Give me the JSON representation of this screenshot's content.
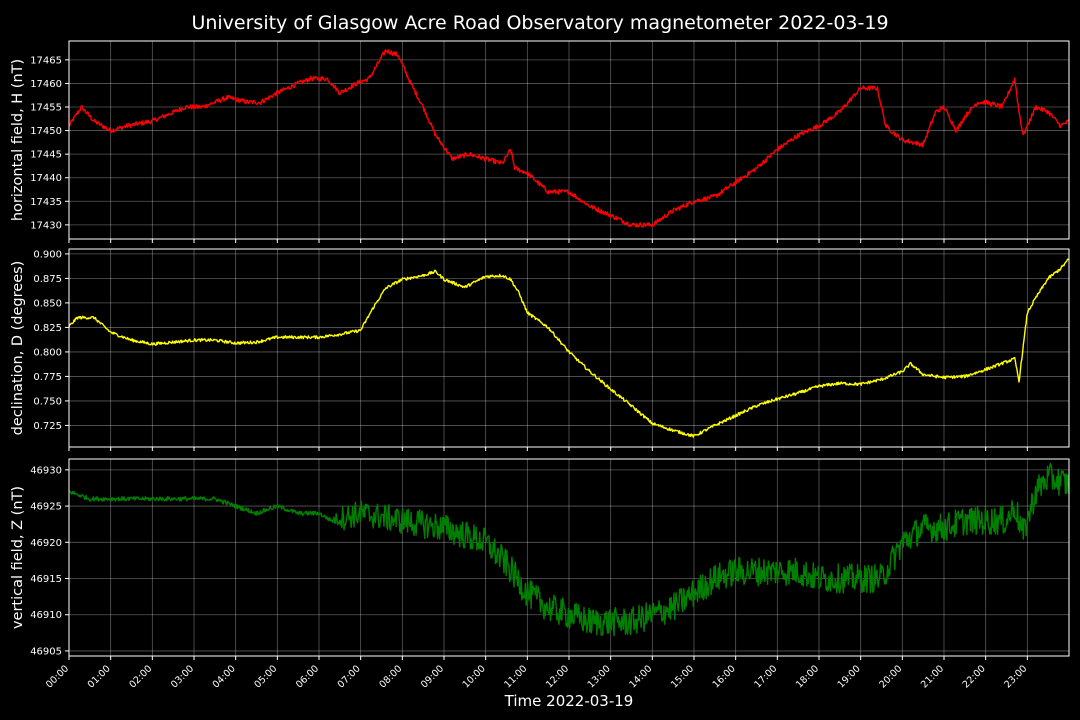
{
  "title": "University of Glasgow Acre Road Observatory magnetometer 2022-03-19",
  "chart_data": [
    {
      "type": "line",
      "ylabel": "horizontal field, H (nT)",
      "ylim": [
        17427,
        17469
      ],
      "yticks": [
        17430,
        17435,
        17440,
        17445,
        17450,
        17455,
        17460,
        17465
      ],
      "color": "#ff0000",
      "noise": 0.5,
      "x_hours": [
        0,
        0.3,
        0.6,
        1.0,
        1.4,
        2.0,
        2.8,
        3.2,
        3.8,
        4.3,
        4.6,
        5.0,
        5.5,
        5.8,
        6.2,
        6.5,
        6.9,
        7.2,
        7.6,
        7.9,
        8.2,
        8.5,
        8.8,
        9.2,
        9.6,
        10.0,
        10.4,
        10.6,
        10.7,
        11.0,
        11.5,
        12.0,
        12.5,
        13.0,
        13.5,
        14.0,
        14.5,
        15.0,
        15.5,
        16.0,
        16.5,
        17.0,
        17.5,
        18.0,
        18.5,
        19.0,
        19.4,
        19.6,
        20.0,
        20.5,
        20.8,
        21.0,
        21.3,
        21.5,
        21.8,
        22.0,
        22.4,
        22.7,
        22.8,
        22.9,
        23.2,
        23.5,
        23.8,
        24.0
      ],
      "values": [
        17451,
        17455,
        17452,
        17450,
        17451,
        17452,
        17455,
        17455,
        17457,
        17456,
        17456,
        17458,
        17460,
        17461,
        17461,
        17458,
        17460,
        17461,
        17467,
        17466,
        17460,
        17455,
        17449,
        17444,
        17445,
        17444,
        17443,
        17446,
        17442,
        17441,
        17437,
        17437,
        17434,
        17432,
        17430,
        17430,
        17433,
        17435,
        17436,
        17439,
        17442,
        17446,
        17449,
        17451,
        17454,
        17459,
        17459,
        17451,
        17448,
        17447,
        17454,
        17455,
        17450,
        17453,
        17456,
        17456,
        17455,
        17461,
        17454,
        17449,
        17455,
        17454,
        17451,
        17452
      ]
    },
    {
      "type": "line",
      "ylabel": "declination, D (degrees)",
      "ylim": [
        0.703,
        0.905
      ],
      "yticks": [
        0.725,
        0.75,
        0.775,
        0.8,
        0.825,
        0.85,
        0.875,
        0.9
      ],
      "tick_decimals": 3,
      "color": "#ffff00",
      "noise": 0.0015,
      "x_hours": [
        0,
        0.2,
        0.6,
        1.0,
        1.5,
        2.0,
        3.0,
        3.5,
        4.0,
        4.5,
        5.0,
        5.5,
        6.0,
        6.5,
        7.0,
        7.3,
        7.6,
        8.0,
        8.5,
        8.8,
        9.0,
        9.5,
        10.0,
        10.4,
        10.6,
        10.8,
        11.0,
        11.5,
        12.0,
        12.5,
        13.0,
        13.5,
        14.0,
        14.5,
        15.0,
        15.5,
        16.0,
        16.5,
        17.0,
        17.5,
        18.0,
        18.5,
        19.0,
        19.5,
        20.0,
        20.2,
        20.5,
        20.8,
        21.0,
        21.5,
        22.0,
        22.5,
        22.7,
        22.8,
        23.0,
        23.2,
        23.5,
        23.8,
        24.0
      ],
      "values": [
        0.826,
        0.835,
        0.835,
        0.82,
        0.812,
        0.808,
        0.812,
        0.812,
        0.809,
        0.81,
        0.815,
        0.815,
        0.815,
        0.818,
        0.822,
        0.845,
        0.865,
        0.874,
        0.878,
        0.882,
        0.874,
        0.866,
        0.877,
        0.878,
        0.874,
        0.86,
        0.84,
        0.825,
        0.8,
        0.78,
        0.762,
        0.745,
        0.727,
        0.72,
        0.714,
        0.725,
        0.735,
        0.745,
        0.752,
        0.758,
        0.765,
        0.768,
        0.767,
        0.772,
        0.78,
        0.788,
        0.777,
        0.775,
        0.774,
        0.775,
        0.782,
        0.79,
        0.793,
        0.77,
        0.84,
        0.855,
        0.875,
        0.885,
        0.895
      ]
    },
    {
      "type": "line",
      "ylabel": "vertical field, Z (nT)",
      "ylim": [
        46904.3,
        46931.5
      ],
      "yticks": [
        46905,
        46910,
        46915,
        46920,
        46925,
        46930
      ],
      "color": "#008000",
      "noise_by_hour": [
        [
          0,
          0.3
        ],
        [
          6.3,
          0.3
        ],
        [
          6.6,
          1.8
        ],
        [
          9.5,
          2.0
        ],
        [
          24,
          2.0
        ]
      ],
      "x_hours": [
        0,
        0.5,
        1.0,
        2.0,
        3.0,
        3.5,
        4.0,
        4.5,
        5.0,
        5.5,
        6.0,
        6.3,
        6.6,
        7.0,
        8.0,
        9.0,
        9.5,
        10.0,
        10.5,
        11.0,
        11.5,
        12.0,
        12.5,
        13.0,
        13.5,
        14.0,
        14.5,
        15.0,
        15.5,
        16.0,
        16.5,
        17.0,
        17.5,
        18.0,
        18.5,
        19.0,
        19.5,
        20.0,
        20.5,
        21.0,
        21.5,
        22.0,
        22.5,
        22.7,
        22.9,
        23.2,
        23.5,
        24.0
      ],
      "values": [
        46927,
        46926,
        46926,
        46926,
        46926,
        46926,
        46925,
        46924,
        46925,
        46924,
        46924,
        46923,
        46923.5,
        46924,
        46923,
        46922,
        46921,
        46920,
        46917,
        46913,
        46911,
        46910,
        46909,
        46909,
        46909,
        46910,
        46911,
        46913,
        46915,
        46916,
        46916,
        46916,
        46916,
        46915,
        46915,
        46915,
        46915,
        46920,
        46922,
        46922,
        46923,
        46923,
        46923,
        46925,
        46921,
        46927,
        46929,
        46928
      ]
    }
  ],
  "x_axis": {
    "xlabel": "Time 2022-03-19",
    "xlim_hours": [
      0,
      24
    ],
    "tick_labels": [
      "00:00",
      "01:00",
      "02:00",
      "03:00",
      "04:00",
      "05:00",
      "06:00",
      "07:00",
      "08:00",
      "09:00",
      "10:00",
      "11:00",
      "12:00",
      "13:00",
      "14:00",
      "15:00",
      "16:00",
      "17:00",
      "18:00",
      "19:00",
      "20:00",
      "21:00",
      "22:00",
      "23:00"
    ]
  }
}
